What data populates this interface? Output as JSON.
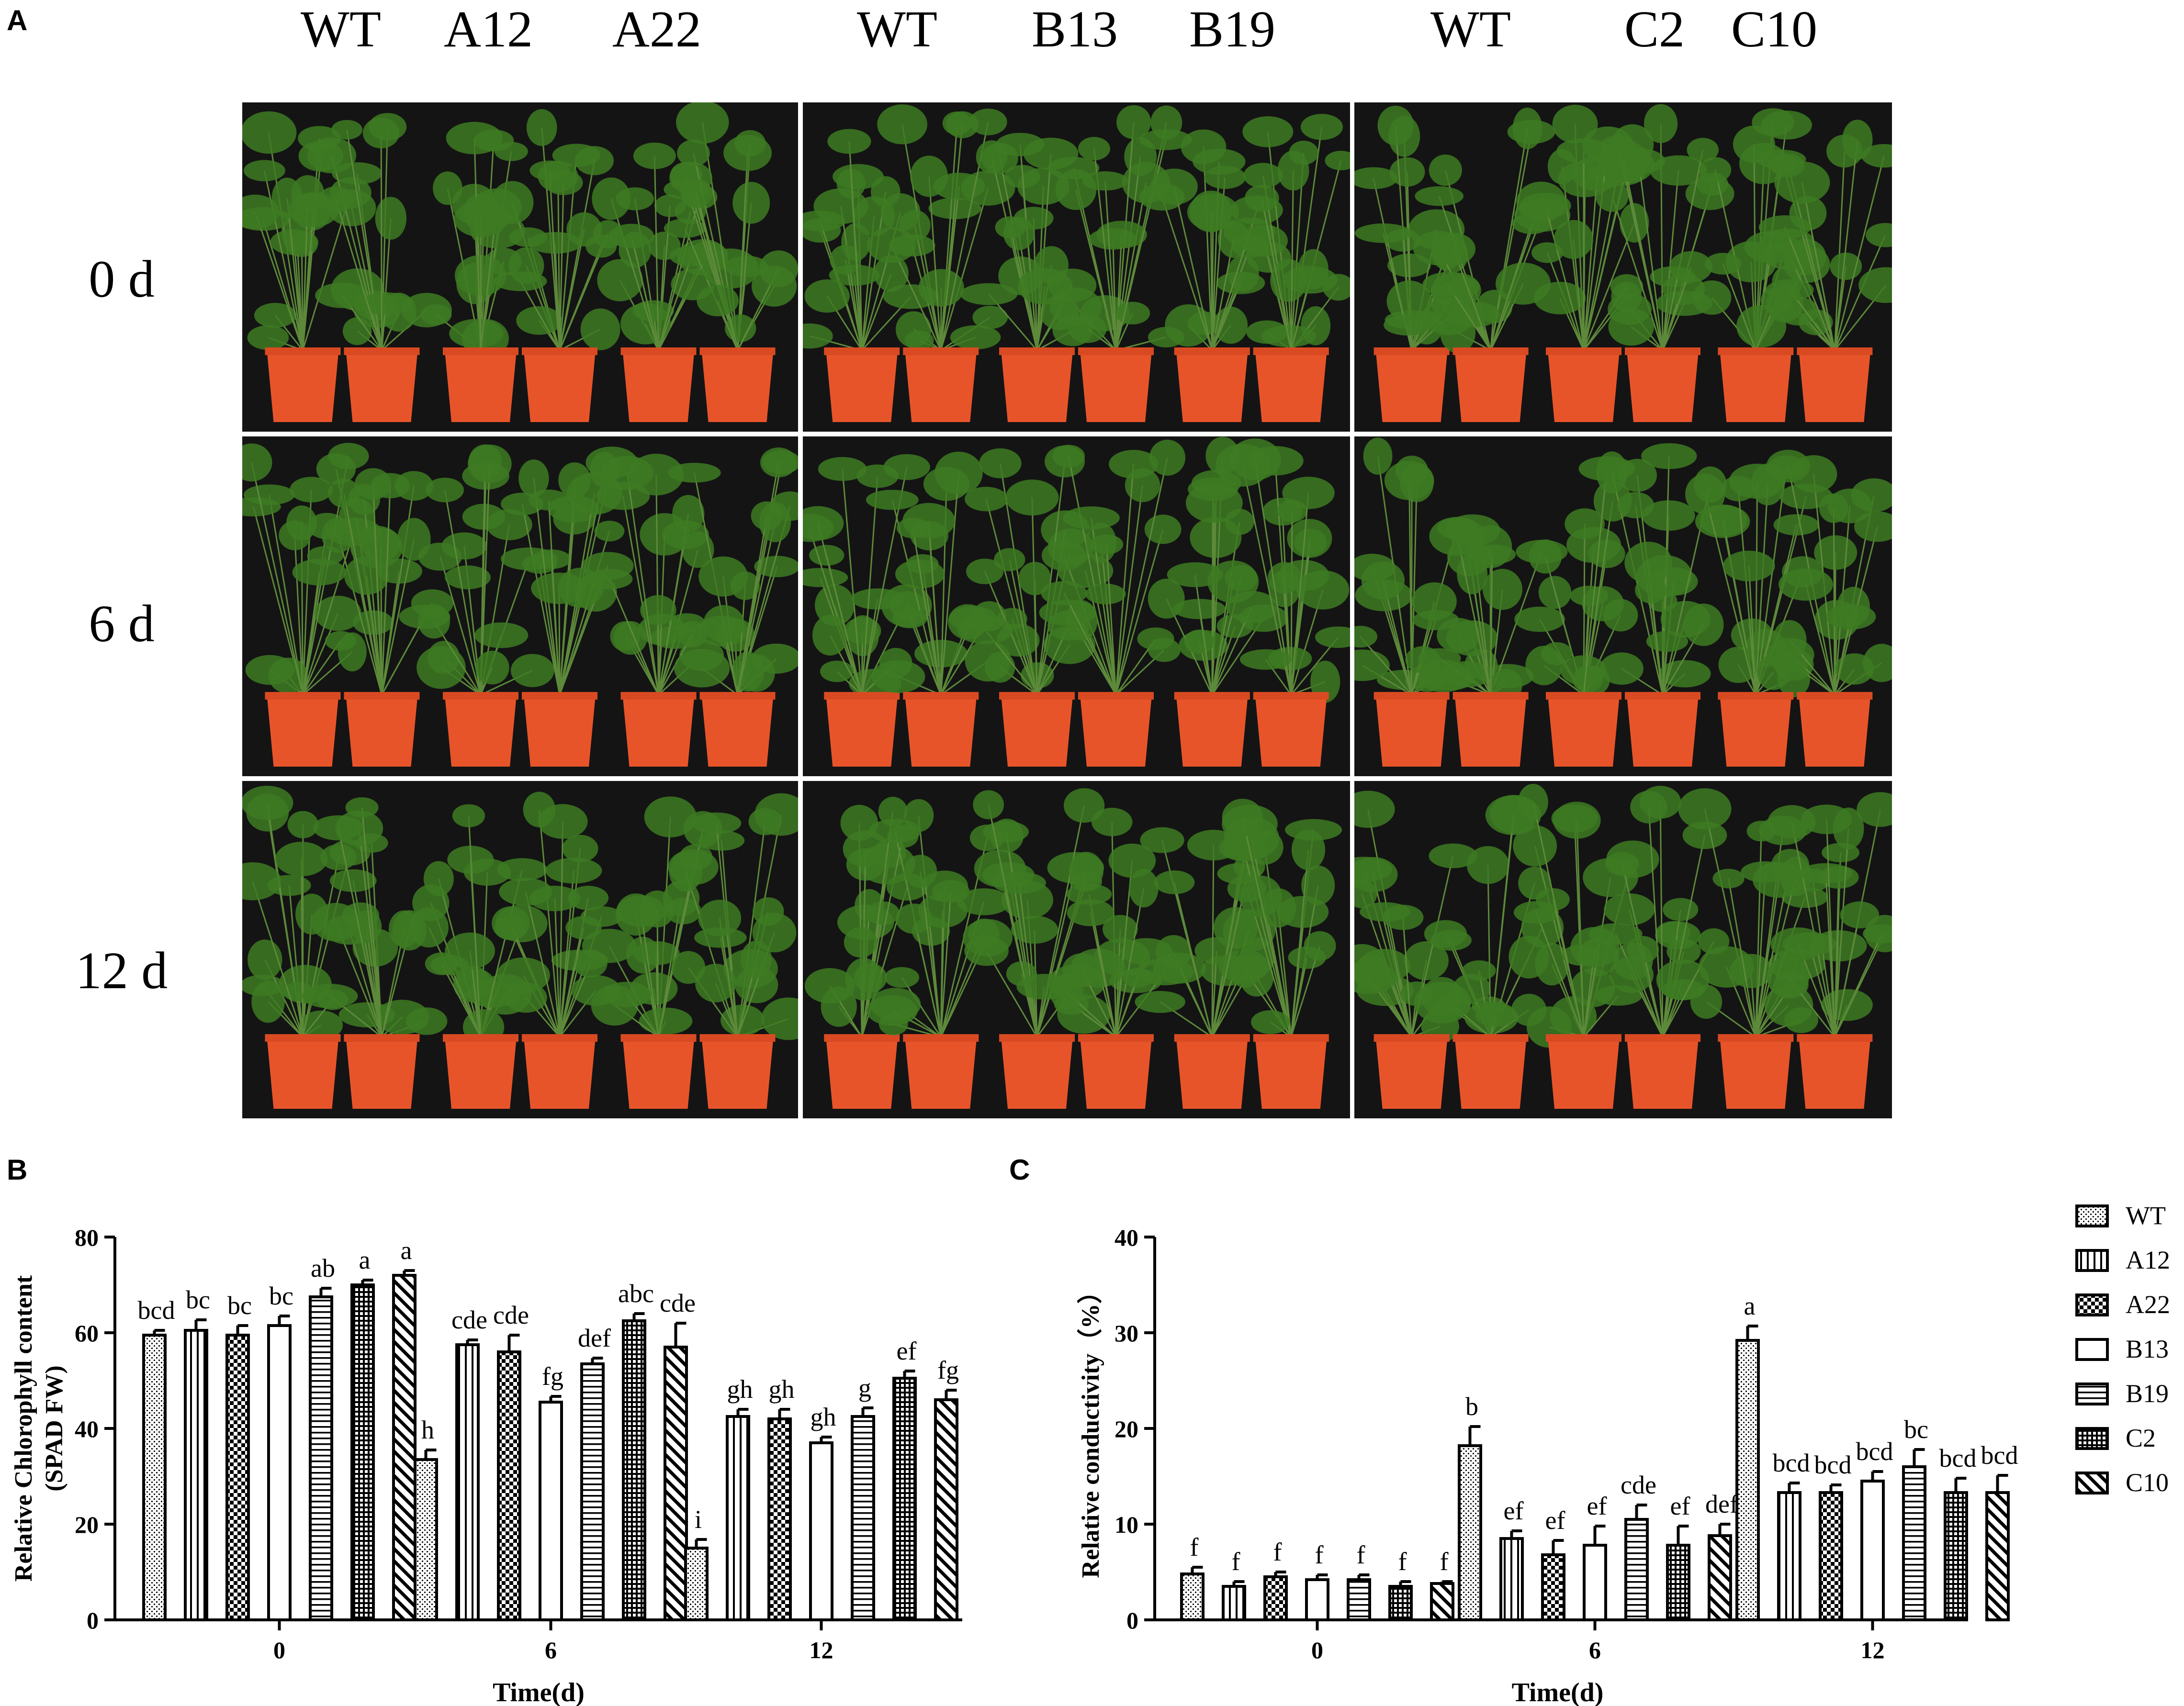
{
  "panels": {
    "a": "A",
    "b": "B",
    "c": "C"
  },
  "panel_a": {
    "groups": [
      {
        "labels": [
          "WT",
          "A12",
          "A22"
        ]
      },
      {
        "labels": [
          "WT",
          "B13",
          "B19"
        ]
      },
      {
        "labels": [
          "WT",
          "C2",
          "C10"
        ]
      }
    ],
    "times": [
      "0 d",
      "6 d",
      "12 d"
    ]
  },
  "colors": {
    "background": "#141414",
    "pot": "#e8542a",
    "plant": "#3d7a22",
    "bar_fill": "#ffffff",
    "bar_stroke": "#000000"
  },
  "chart_data": [
    {
      "type": "bar",
      "panel": "B",
      "categories": [
        "0",
        "6",
        "12"
      ],
      "xlabel": "Time(d)",
      "ylabel": "Relative Chlorophyll content",
      "ylabel2": "(SPAD FW)",
      "ylim": [
        0,
        80
      ],
      "yticks": [
        0,
        20,
        40,
        60,
        80
      ],
      "series": [
        {
          "name": "WT",
          "values": [
            59.5,
            33.5,
            15.0
          ],
          "errors": [
            1.0,
            2.0,
            1.8
          ],
          "letters": [
            "bcd",
            "h",
            "i"
          ]
        },
        {
          "name": "A12",
          "values": [
            60.5,
            57.5,
            42.5
          ],
          "errors": [
            2.2,
            1.0,
            1.5
          ],
          "letters": [
            "bc",
            "cde",
            "gh"
          ]
        },
        {
          "name": "A22",
          "values": [
            59.5,
            56.0,
            42.0
          ],
          "errors": [
            2.0,
            3.5,
            2.0
          ],
          "letters": [
            "bc",
            "cde",
            "gh"
          ]
        },
        {
          "name": "B13",
          "values": [
            61.5,
            45.5,
            37.0
          ],
          "errors": [
            2.0,
            1.2,
            1.2
          ],
          "letters": [
            "bc",
            "fg",
            "gh"
          ]
        },
        {
          "name": "B19",
          "values": [
            67.5,
            53.5,
            42.5
          ],
          "errors": [
            1.8,
            1.2,
            1.8
          ],
          "letters": [
            "ab",
            "def",
            "g"
          ]
        },
        {
          "name": "C2",
          "values": [
            70.0,
            62.5,
            50.5
          ],
          "errors": [
            1.0,
            1.5,
            1.5
          ],
          "letters": [
            "a",
            "abc",
            "ef"
          ]
        },
        {
          "name": "C10",
          "values": [
            72.0,
            57.0,
            46.0
          ],
          "errors": [
            1.0,
            5.0,
            2.0
          ],
          "letters": [
            "a",
            "cde",
            "fg"
          ]
        }
      ]
    },
    {
      "type": "bar",
      "panel": "C",
      "categories": [
        "0",
        "6",
        "12"
      ],
      "xlabel": "Time(d)",
      "ylabel": "Relative conductivity（%）",
      "ylim": [
        0,
        40
      ],
      "yticks": [
        0,
        10,
        20,
        30,
        40
      ],
      "legend": "right",
      "series": [
        {
          "name": "WT",
          "values": [
            4.8,
            18.2,
            29.2
          ],
          "errors": [
            0.7,
            2.0,
            1.5
          ],
          "letters": [
            "f",
            "b",
            "a"
          ]
        },
        {
          "name": "A12",
          "values": [
            3.5,
            8.5,
            13.3
          ],
          "errors": [
            0.5,
            0.8,
            1.0
          ],
          "letters": [
            "f",
            "ef",
            "bcd"
          ]
        },
        {
          "name": "A22",
          "values": [
            4.5,
            6.8,
            13.3
          ],
          "errors": [
            0.5,
            1.5,
            0.8
          ],
          "letters": [
            "f",
            "ef",
            "bcd"
          ]
        },
        {
          "name": "B13",
          "values": [
            4.2,
            7.8,
            14.5
          ],
          "errors": [
            0.5,
            2.0,
            1.0
          ],
          "letters": [
            "f",
            "ef",
            "bcd"
          ]
        },
        {
          "name": "B19",
          "values": [
            4.2,
            10.5,
            16.0
          ],
          "errors": [
            0.5,
            1.5,
            1.8
          ],
          "letters": [
            "f",
            "cde",
            "bc"
          ]
        },
        {
          "name": "C2",
          "values": [
            3.5,
            7.8,
            13.3
          ],
          "errors": [
            0.5,
            2.0,
            1.5
          ],
          "letters": [
            "f",
            "ef",
            "bcd"
          ]
        },
        {
          "name": "C10",
          "values": [
            3.8,
            8.8,
            13.3
          ],
          "errors": [
            0.2,
            1.2,
            1.8
          ],
          "letters": [
            "f",
            "def",
            "bcd"
          ]
        }
      ]
    }
  ]
}
